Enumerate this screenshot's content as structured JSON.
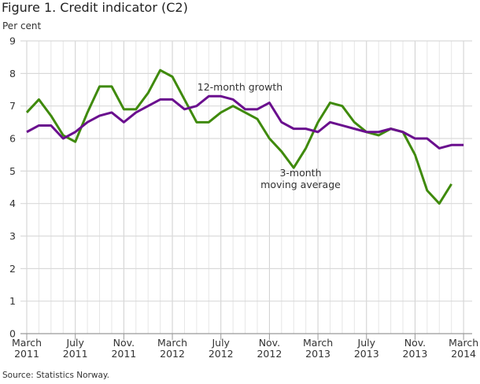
{
  "chart_data": {
    "type": "line",
    "title": "Figure 1. Credit indicator (C2)",
    "ylabel": "Per cent",
    "source": "Source: Statistics Norway.",
    "ylim": [
      0,
      9
    ],
    "yticks": [
      0,
      1,
      2,
      3,
      4,
      5,
      6,
      7,
      8,
      9
    ],
    "grid": true,
    "x_start": "2011-03",
    "x_end": "2014-03",
    "xtick_labels": [
      [
        "March",
        "2011"
      ],
      [
        "July",
        "2011"
      ],
      [
        "Nov.",
        "2011"
      ],
      [
        "March",
        "2012"
      ],
      [
        "July",
        "2012"
      ],
      [
        "Nov.",
        "2012"
      ],
      [
        "March",
        "2013"
      ],
      [
        "July",
        "2013"
      ],
      [
        "Nov.",
        "2013"
      ],
      [
        "March",
        "2014"
      ]
    ],
    "series": [
      {
        "name": "12-month growth",
        "color": "#6a0f8e",
        "values": [
          6.2,
          6.4,
          6.4,
          6.0,
          6.2,
          6.5,
          6.7,
          6.8,
          6.5,
          6.8,
          7.0,
          7.2,
          7.2,
          6.9,
          7.0,
          7.3,
          7.3,
          7.2,
          6.9,
          6.9,
          7.1,
          6.5,
          6.3,
          6.3,
          6.2,
          6.5,
          6.4,
          6.3,
          6.2,
          6.2,
          6.3,
          6.2,
          6.0,
          6.0,
          5.7,
          5.8,
          5.8
        ]
      },
      {
        "name": "3-month moving average",
        "label_lines": [
          "3-month",
          "moving average"
        ],
        "color": "#3f8a0c",
        "values": [
          6.8,
          7.2,
          6.7,
          6.1,
          5.9,
          6.8,
          7.6,
          7.6,
          6.9,
          6.9,
          7.4,
          8.1,
          7.9,
          7.2,
          6.5,
          6.5,
          6.8,
          7.0,
          6.8,
          6.6,
          6.0,
          5.6,
          5.1,
          5.7,
          6.5,
          7.1,
          7.0,
          6.5,
          6.2,
          6.1,
          6.3,
          6.2,
          5.5,
          4.4,
          4.0,
          4.6
        ]
      }
    ]
  }
}
